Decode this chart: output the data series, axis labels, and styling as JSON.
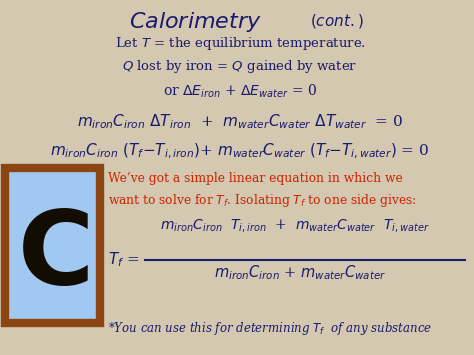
{
  "bg_color": "#d4c8b0",
  "dark_blue": "#1a1a6e",
  "red_color": "#cc2200",
  "frame_bg": "#a0c8f0",
  "frame_border": "#8b4513",
  "figsize": [
    4.74,
    3.55
  ],
  "dpi": 100
}
